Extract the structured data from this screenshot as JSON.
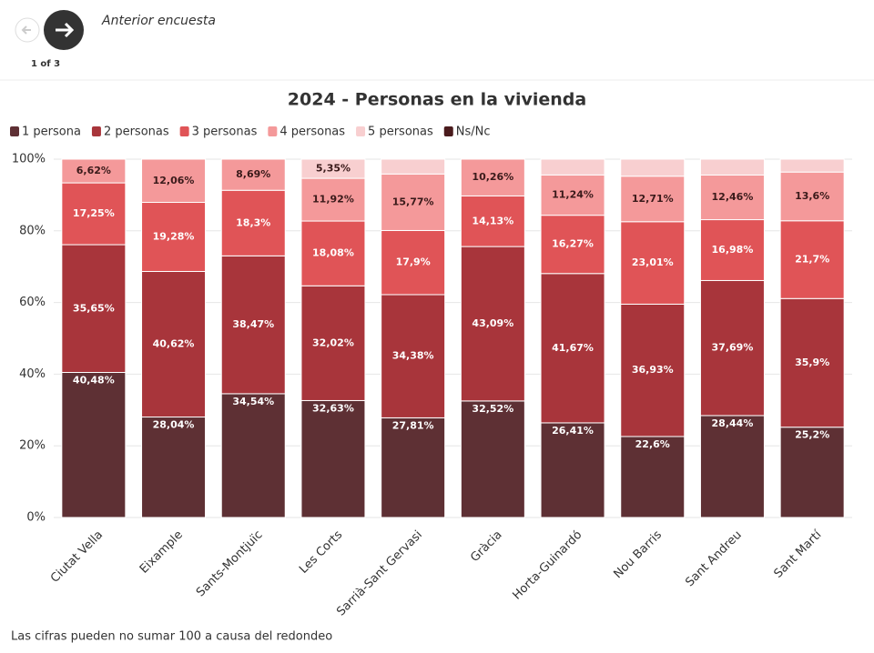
{
  "header": {
    "link": "Anterior encuesta",
    "counter": "1 of 3"
  },
  "chart_data": {
    "type": "stacked-bar",
    "title": "2024 - Personas en la vivienda",
    "categories": [
      "Ciutat Vella",
      "Eixample",
      "Sants-Montjuïc",
      "Les Corts",
      "Sarrià-Sant Gervasi",
      "Gràcia",
      "Horta-Guinardó",
      "Nou Barris",
      "Sant Andreu",
      "Sant Martí"
    ],
    "series": [
      {
        "name": "1 persona",
        "color": "#5e3034",
        "values": [
          40.48,
          28.04,
          34.54,
          32.63,
          27.81,
          32.52,
          26.41,
          22.6,
          28.44,
          25.2
        ],
        "value_labels": [
          "40,48%",
          "28,04%",
          "34,54%",
          "32,63%",
          "27,81%",
          "32,52%",
          "26,41%",
          "22,6%",
          "28,44%",
          "25,2%"
        ]
      },
      {
        "name": "2 personas",
        "color": "#a8353b",
        "values": [
          35.65,
          40.62,
          38.47,
          32.02,
          34.38,
          43.09,
          41.67,
          36.93,
          37.69,
          35.9
        ],
        "value_labels": [
          "35,65%",
          "40,62%",
          "38,47%",
          "32,02%",
          "34,38%",
          "43,09%",
          "41,67%",
          "36,93%",
          "37,69%",
          "35,9%"
        ]
      },
      {
        "name": "3 personas",
        "color": "#e05457",
        "values": [
          17.25,
          19.28,
          18.3,
          18.08,
          17.9,
          14.13,
          16.27,
          23.01,
          16.98,
          21.7
        ],
        "value_labels": [
          "17,25%",
          "19,28%",
          "18,3%",
          "18,08%",
          "17,9%",
          "14,13%",
          "16,27%",
          "23,01%",
          "16,98%",
          "21,7%"
        ]
      },
      {
        "name": "4 personas",
        "color": "#f4999a",
        "values": [
          6.62,
          12.06,
          8.69,
          11.92,
          15.77,
          10.26,
          11.24,
          12.71,
          12.46,
          13.6
        ],
        "value_labels": [
          "6,62%",
          "12,06%",
          "8,69%",
          "11,92%",
          "15,77%",
          "10,26%",
          "11,24%",
          "12,71%",
          "12,46%",
          "13,6%"
        ]
      },
      {
        "name": "5 personas",
        "color": "#f8cfd0",
        "values": [
          null,
          null,
          null,
          5.35,
          4.14,
          null,
          4.41,
          4.75,
          4.43,
          3.6
        ],
        "value_labels": [
          null,
          null,
          null,
          "5,35%",
          null,
          null,
          null,
          null,
          null,
          null
        ]
      },
      {
        "name": "Ns/Nc",
        "color": "#4a1b1d",
        "values": [
          null,
          null,
          null,
          null,
          null,
          null,
          null,
          null,
          null,
          null
        ]
      }
    ],
    "ylim": [
      0,
      100
    ],
    "yticks": [
      {
        "value": 0,
        "label": "0%"
      },
      {
        "value": 20,
        "label": "20%"
      },
      {
        "value": 40,
        "label": "40%"
      },
      {
        "value": 60,
        "label": "60%"
      },
      {
        "value": 80,
        "label": "80%"
      },
      {
        "value": 100,
        "label": "100%"
      }
    ],
    "grid": true
  },
  "footnote": "Las cifras pueden no sumar 100 a causa del redondeo"
}
